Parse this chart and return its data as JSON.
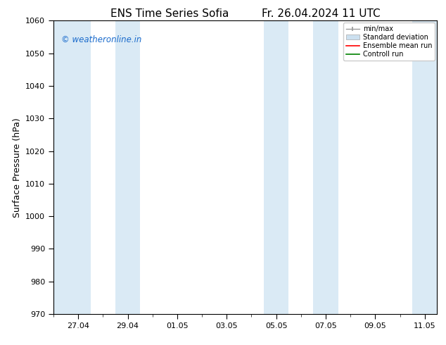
{
  "title_left": "ENS Time Series Sofia",
  "title_right": "Fr. 26.04.2024 11 UTC",
  "ylabel": "Surface Pressure (hPa)",
  "ylim": [
    970,
    1060
  ],
  "yticks": [
    970,
    980,
    990,
    1000,
    1010,
    1020,
    1030,
    1040,
    1050,
    1060
  ],
  "xlim_start": 0,
  "xlim_end": 15.5,
  "xtick_labels": [
    "27.04",
    "29.04",
    "01.05",
    "03.05",
    "05.05",
    "07.05",
    "09.05",
    "11.05"
  ],
  "xtick_positions": [
    1,
    3,
    5,
    7,
    9,
    11,
    13,
    15
  ],
  "shaded_bands": [
    {
      "x_start": 0.0,
      "x_end": 1.5,
      "color": "#daeaf5"
    },
    {
      "x_start": 2.5,
      "x_end": 3.5,
      "color": "#daeaf5"
    },
    {
      "x_start": 8.5,
      "x_end": 9.5,
      "color": "#daeaf5"
    },
    {
      "x_start": 10.5,
      "x_end": 11.5,
      "color": "#daeaf5"
    },
    {
      "x_start": 14.5,
      "x_end": 15.5,
      "color": "#daeaf5"
    }
  ],
  "watermark_text": "© weatheronline.in",
  "watermark_color": "#1a6bcc",
  "legend_items": [
    {
      "label": "min/max",
      "color": "#aaaaaa",
      "type": "errorbar"
    },
    {
      "label": "Standard deviation",
      "color": "#cce0f0",
      "type": "fill"
    },
    {
      "label": "Ensemble mean run",
      "color": "red",
      "type": "line"
    },
    {
      "label": "Controll run",
      "color": "green",
      "type": "line"
    }
  ],
  "bg_color": "#ffffff",
  "plot_bg_color": "#ffffff",
  "tick_fontsize": 8,
  "label_fontsize": 9,
  "title_fontsize": 11
}
